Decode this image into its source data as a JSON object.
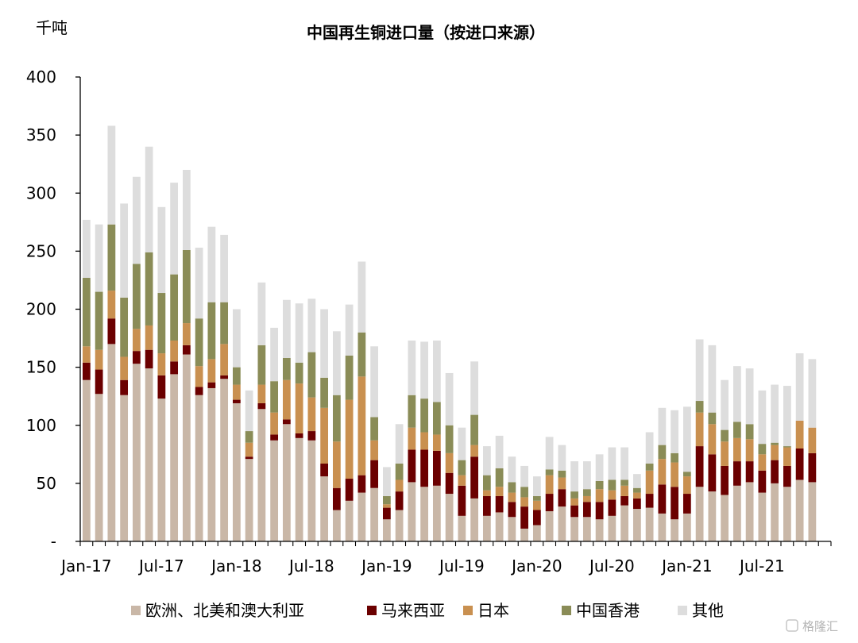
{
  "chart_data": {
    "type": "bar",
    "stacked": true,
    "title": "中国再生铜进口量（按进口来源）",
    "ylabel": "千吨",
    "ylim": [
      0,
      400
    ],
    "yticks": [
      0,
      50,
      100,
      150,
      200,
      250,
      300,
      350,
      400
    ],
    "ytick_labels": [
      "-",
      "50",
      "100",
      "150",
      "200",
      "250",
      "300",
      "350",
      "400"
    ],
    "x_tick_labels": [
      "Jan-17",
      "Jul-17",
      "Jan-18",
      "Jul-18",
      "Jan-19",
      "Jul-19",
      "Jan-20",
      "Jul-20",
      "Jan-21",
      "Jul-21"
    ],
    "x_tick_every": 6,
    "grid": false,
    "legend_position": "bottom",
    "categories": [
      "2017-01",
      "2017-02",
      "2017-03",
      "2017-04",
      "2017-05",
      "2017-06",
      "2017-07",
      "2017-08",
      "2017-09",
      "2017-10",
      "2017-11",
      "2017-12",
      "2018-01",
      "2018-02",
      "2018-03",
      "2018-04",
      "2018-05",
      "2018-06",
      "2018-07",
      "2018-08",
      "2018-09",
      "2018-10",
      "2018-11",
      "2018-12",
      "2019-01",
      "2019-02",
      "2019-03",
      "2019-04",
      "2019-05",
      "2019-06",
      "2019-07",
      "2019-08",
      "2019-09",
      "2019-10",
      "2019-11",
      "2019-12",
      "2020-01",
      "2020-02",
      "2020-03",
      "2020-04",
      "2020-05",
      "2020-06",
      "2020-07",
      "2020-08",
      "2020-09",
      "2020-10",
      "2020-11",
      "2020-12",
      "2021-01",
      "2021-02",
      "2021-03",
      "2021-04",
      "2021-05",
      "2021-06",
      "2021-07",
      "2021-08",
      "2021-09",
      "2021-10",
      "2021-11",
      "2021-12"
    ],
    "series": [
      {
        "name": "欧洲、北美和澳大利亚",
        "color": "#c9b7a7",
        "values": [
          139,
          127,
          170,
          126,
          153,
          149,
          123,
          144,
          161,
          126,
          132,
          140,
          119,
          71,
          114,
          87,
          101,
          89,
          87,
          56,
          27,
          35,
          42,
          46,
          19,
          27,
          51,
          47,
          48,
          41,
          22,
          37,
          22,
          25,
          21,
          11,
          14,
          26,
          30,
          21,
          21,
          19,
          22,
          31,
          28,
          29,
          24,
          19,
          24,
          47,
          43,
          40,
          48,
          51,
          42,
          50,
          47,
          53,
          51,
          0
        ]
      },
      {
        "name": "马来西亚",
        "color": "#6b0000",
        "values": [
          15,
          21,
          22,
          13,
          11,
          16,
          20,
          11,
          8,
          7,
          5,
          3,
          3,
          2,
          5,
          5,
          4,
          4,
          8,
          11,
          19,
          19,
          15,
          24,
          10,
          16,
          28,
          32,
          30,
          18,
          26,
          36,
          17,
          14,
          13,
          19,
          13,
          15,
          15,
          10,
          13,
          15,
          14,
          8,
          9,
          12,
          25,
          28,
          17,
          35,
          32,
          25,
          21,
          18,
          19,
          20,
          18,
          27,
          25,
          0
        ]
      },
      {
        "name": "日本",
        "color": "#c99050",
        "values": [
          14,
          17,
          24,
          20,
          19,
          21,
          19,
          18,
          19,
          18,
          20,
          27,
          13,
          12,
          16,
          19,
          34,
          43,
          29,
          48,
          40,
          68,
          85,
          17,
          3,
          10,
          19,
          15,
          14,
          17,
          9,
          10,
          5,
          8,
          8,
          8,
          8,
          16,
          10,
          6,
          5,
          11,
          8,
          9,
          5,
          20,
          22,
          21,
          15,
          29,
          26,
          21,
          20,
          19,
          14,
          13,
          16,
          24,
          22,
          0
        ]
      },
      {
        "name": "中国香港",
        "color": "#8a8c57",
        "values": [
          59,
          50,
          57,
          51,
          56,
          63,
          52,
          57,
          63,
          41,
          49,
          36,
          15,
          10,
          34,
          27,
          19,
          18,
          39,
          26,
          40,
          38,
          38,
          20,
          7,
          14,
          28,
          29,
          28,
          24,
          13,
          26,
          13,
          16,
          9,
          9,
          4,
          5,
          6,
          6,
          6,
          7,
          9,
          5,
          4,
          6,
          12,
          8,
          4,
          10,
          10,
          10,
          14,
          13,
          9,
          2,
          1,
          0,
          0,
          0
        ]
      },
      {
        "name": "其他",
        "color": "#dddddd",
        "values": [
          50,
          58,
          85,
          81,
          75,
          91,
          74,
          79,
          69,
          61,
          65,
          58,
          50,
          35,
          54,
          46,
          50,
          51,
          46,
          59,
          55,
          44,
          61,
          61,
          25,
          34,
          47,
          49,
          53,
          45,
          28,
          46,
          25,
          28,
          22,
          18,
          17,
          28,
          22,
          26,
          24,
          23,
          28,
          28,
          12,
          27,
          32,
          37,
          56,
          53,
          58,
          43,
          48,
          48,
          46,
          50,
          52,
          58,
          59,
          0
        ]
      }
    ]
  },
  "watermark_text": "格隆汇"
}
